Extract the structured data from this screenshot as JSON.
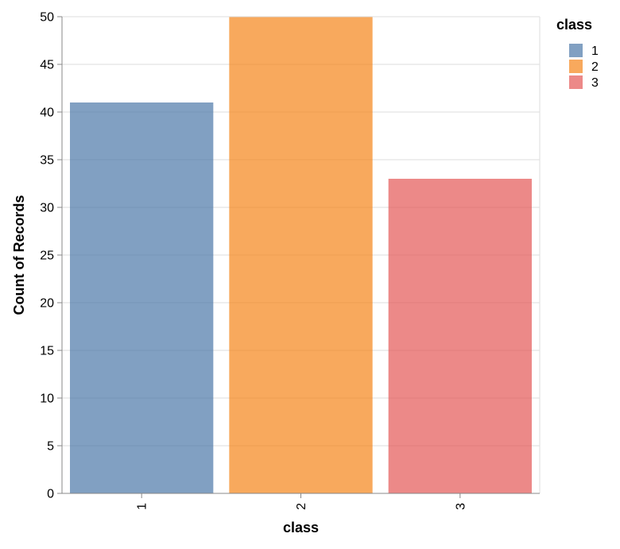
{
  "chart_data": {
    "type": "bar",
    "categories": [
      "1",
      "2",
      "3"
    ],
    "values": [
      41,
      50,
      33
    ],
    "colors": [
      "#4c78a8",
      "#f58518",
      "#e45756"
    ],
    "bar_opacity": 0.7,
    "xlabel": "class",
    "ylabel": "Count of Records",
    "ylim": [
      0,
      50
    ],
    "yticks": [
      "0",
      "5",
      "10",
      "15",
      "20",
      "25",
      "30",
      "35",
      "40",
      "45",
      "50"
    ],
    "grid": true,
    "x_tick_label_rotation": "vertical",
    "legend": {
      "title": "class",
      "placement": "top-right",
      "entries": [
        "1",
        "2",
        "3"
      ]
    }
  }
}
